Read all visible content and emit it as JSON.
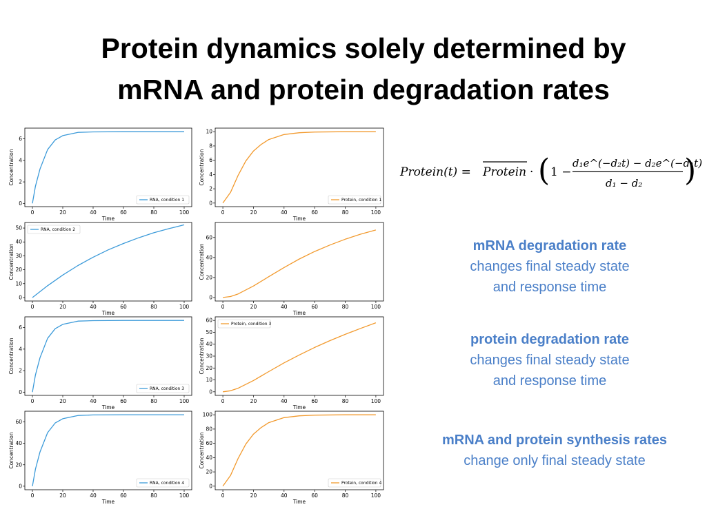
{
  "title": {
    "line1": "Protein dynamics solely determined by",
    "line2": "mRNA and protein degradation rates"
  },
  "colors": {
    "rna": "#3b9ad9",
    "protein": "#f29a2e",
    "annotation_text": "#4a7fc8"
  },
  "equation": {
    "lhs": "Protein(t) = ",
    "overline_term": "Protein",
    "numerator": "d₁e^(−d₂t) − d₂e^(−d₁t)",
    "denominator": "d₁ − d₂"
  },
  "annotations": [
    {
      "heading": "mRNA degradation rate",
      "lines": [
        "changes final steady state",
        "and response time"
      ]
    },
    {
      "heading": "protein degradation rate",
      "lines": [
        "changes final steady state",
        "and response time"
      ]
    },
    {
      "heading": "mRNA and protein synthesis rates",
      "lines": [
        "change only final steady state"
      ]
    }
  ],
  "chart_data": [
    {
      "type": "line",
      "panel": "rna-1",
      "xlabel": "Time",
      "ylabel": "Concentration",
      "xlim": [
        -5,
        105
      ],
      "ylim": [
        -0.3,
        7.0
      ],
      "xticks": [
        0,
        20,
        40,
        60,
        80,
        100
      ],
      "yticks": [
        0,
        2,
        4,
        6
      ],
      "legend": "bottom-right",
      "grid": false,
      "series": [
        {
          "name": "RNA, condition 1",
          "color": "#3b9ad9",
          "x": [
            0,
            2,
            5,
            10,
            15,
            20,
            30,
            40,
            60,
            80,
            100
          ],
          "y": [
            0,
            1.6,
            3.2,
            5.0,
            5.9,
            6.3,
            6.6,
            6.65,
            6.67,
            6.67,
            6.67
          ]
        }
      ]
    },
    {
      "type": "line",
      "panel": "protein-1",
      "xlabel": "Time",
      "ylabel": "Concentration",
      "xlim": [
        -5,
        105
      ],
      "ylim": [
        -0.5,
        10.5
      ],
      "xticks": [
        0,
        20,
        40,
        60,
        80,
        100
      ],
      "yticks": [
        0,
        2,
        4,
        6,
        8,
        10
      ],
      "legend": "bottom-right",
      "grid": false,
      "series": [
        {
          "name": "Protein, condition 1",
          "color": "#f29a2e",
          "x": [
            0,
            5,
            10,
            15,
            20,
            25,
            30,
            40,
            50,
            60,
            80,
            100
          ],
          "y": [
            0,
            1.5,
            3.9,
            5.9,
            7.3,
            8.2,
            8.9,
            9.6,
            9.85,
            9.95,
            10.0,
            10.0
          ]
        }
      ]
    },
    {
      "type": "line",
      "panel": "rna-2",
      "xlabel": "Time",
      "ylabel": "Concentration",
      "xlim": [
        -5,
        105
      ],
      "ylim": [
        -2.5,
        54
      ],
      "xticks": [
        0,
        20,
        40,
        60,
        80,
        100
      ],
      "yticks": [
        0,
        10,
        20,
        30,
        40,
        50
      ],
      "legend": "top-left",
      "grid": false,
      "series": [
        {
          "name": "RNA, condition 2",
          "color": "#3b9ad9",
          "x": [
            0,
            10,
            20,
            30,
            40,
            50,
            60,
            70,
            80,
            90,
            100
          ],
          "y": [
            0,
            8.5,
            16.2,
            23.0,
            29.0,
            34.3,
            38.9,
            43.0,
            46.6,
            49.6,
            52.3
          ]
        }
      ]
    },
    {
      "type": "line",
      "panel": "protein-2",
      "xlabel": "Time",
      "ylabel": "Concentration",
      "xlim": [
        -5,
        105
      ],
      "ylim": [
        -3.5,
        75
      ],
      "xticks": [
        0,
        20,
        40,
        60,
        80,
        100
      ],
      "yticks": [
        0,
        20,
        40,
        60
      ],
      "legend": "none",
      "grid": false,
      "series": [
        {
          "name": "",
          "color": "#f29a2e",
          "x": [
            0,
            5,
            10,
            20,
            30,
            40,
            50,
            60,
            70,
            80,
            90,
            100
          ],
          "y": [
            0,
            1.0,
            3.6,
            11.5,
            20.8,
            30.0,
            38.5,
            46.0,
            52.5,
            58.3,
            63.3,
            67.5
          ]
        }
      ]
    },
    {
      "type": "line",
      "panel": "rna-3",
      "xlabel": "Time",
      "ylabel": "Concentration",
      "xlim": [
        -5,
        105
      ],
      "ylim": [
        -0.3,
        7.0
      ],
      "xticks": [
        0,
        20,
        40,
        60,
        80,
        100
      ],
      "yticks": [
        0,
        2,
        4,
        6
      ],
      "legend": "bottom-right",
      "grid": false,
      "series": [
        {
          "name": "RNA, condition 3",
          "color": "#3b9ad9",
          "x": [
            0,
            2,
            5,
            10,
            15,
            20,
            30,
            40,
            60,
            80,
            100
          ],
          "y": [
            0,
            1.6,
            3.2,
            5.0,
            5.9,
            6.3,
            6.6,
            6.65,
            6.67,
            6.67,
            6.67
          ]
        }
      ]
    },
    {
      "type": "line",
      "panel": "protein-3",
      "xlabel": "Time",
      "ylabel": "Concentration",
      "xlim": [
        -5,
        105
      ],
      "ylim": [
        -3,
        63
      ],
      "xticks": [
        0,
        20,
        40,
        60,
        80,
        100
      ],
      "yticks": [
        0,
        10,
        20,
        30,
        40,
        50,
        60
      ],
      "legend": "top-left",
      "grid": false,
      "series": [
        {
          "name": "Protein, condition 3",
          "color": "#f29a2e",
          "x": [
            0,
            5,
            10,
            20,
            30,
            40,
            50,
            60,
            70,
            80,
            90,
            100
          ],
          "y": [
            0,
            0.9,
            3.0,
            9.5,
            17.0,
            24.3,
            31.0,
            37.3,
            43.0,
            48.3,
            53.3,
            58.0
          ]
        }
      ]
    },
    {
      "type": "line",
      "panel": "rna-4",
      "xlabel": "Time",
      "ylabel": "Concentration",
      "xlim": [
        -5,
        105
      ],
      "ylim": [
        -3.3,
        70
      ],
      "xticks": [
        0,
        20,
        40,
        60,
        80,
        100
      ],
      "yticks": [
        0,
        20,
        40,
        60
      ],
      "legend": "bottom-right",
      "grid": false,
      "series": [
        {
          "name": "RNA, condition 4",
          "color": "#3b9ad9",
          "x": [
            0,
            2,
            5,
            10,
            15,
            20,
            30,
            40,
            60,
            80,
            100
          ],
          "y": [
            0,
            16,
            32,
            50,
            59,
            63,
            66,
            66.5,
            66.7,
            66.7,
            66.7
          ]
        }
      ]
    },
    {
      "type": "line",
      "panel": "protein-4",
      "xlabel": "Time",
      "ylabel": "Concentration",
      "xlim": [
        -5,
        105
      ],
      "ylim": [
        -5,
        105
      ],
      "xticks": [
        0,
        20,
        40,
        60,
        80,
        100
      ],
      "yticks": [
        0,
        20,
        40,
        60,
        80,
        100
      ],
      "legend": "bottom-right",
      "grid": false,
      "series": [
        {
          "name": "Protein, condition 4",
          "color": "#f29a2e",
          "x": [
            0,
            5,
            10,
            15,
            20,
            25,
            30,
            40,
            50,
            60,
            80,
            100
          ],
          "y": [
            0,
            15,
            39,
            59,
            73,
            82,
            89,
            96,
            98.5,
            99.5,
            100,
            100
          ]
        }
      ]
    }
  ]
}
